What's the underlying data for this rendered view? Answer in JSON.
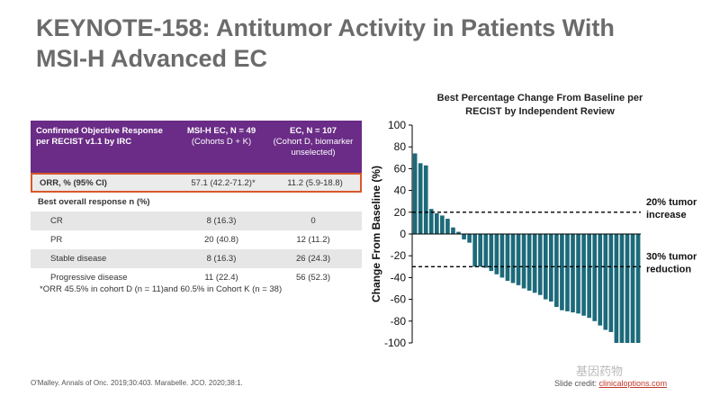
{
  "title": {
    "line1": "KEYNOTE-158: Antitumor Activity in Patients With",
    "line2": "MSI-H Advanced EC"
  },
  "table": {
    "header": {
      "col1": "Confirmed Objective Response per RECIST v1.1 by IRC",
      "col2_main": "MSI-H EC, N = 49",
      "col2_sub": "(Cohorts D + K)",
      "col3_main": "EC, N = 107",
      "col3_sub": "(Cohort D, biomarker unselected)"
    },
    "orr": {
      "label": "ORR, % (95% CI)",
      "msi": "57.1 (42.2-71.2)*",
      "ec": "11.2 (5.9-18.8)"
    },
    "bor_label": "Best overall response n (%)",
    "rows": [
      {
        "label": "CR",
        "msi": "8 (16.3)",
        "ec": "0"
      },
      {
        "label": "PR",
        "msi": "20 (40.8)",
        "ec": "12 (11.2)"
      },
      {
        "label": "Stable disease",
        "msi": "8 (16.3)",
        "ec": "26 (24.3)"
      },
      {
        "label": "Progressive disease",
        "msi": "11 (22.4)",
        "ec": "56 (52.3)"
      }
    ],
    "footnote": "*ORR 45.5% in cohort D (n = 11)and 60.5% in Cohort K (n = 38)"
  },
  "chart_data": {
    "type": "bar",
    "title_line1": "Best Percentage Change From Baseline per",
    "title_line2": "RECIST by Independent Review",
    "ylabel": "Change From Baseline (%)",
    "ylim": [
      -100,
      100
    ],
    "yticks": [
      "100",
      "80",
      "60",
      "40",
      "20",
      "0",
      "-20",
      "-40",
      "-60",
      "-80",
      "-100"
    ],
    "values": [
      74,
      65,
      63,
      23,
      19,
      17,
      14,
      6,
      2,
      -5,
      -8,
      -30,
      -30,
      -31,
      -34,
      -37,
      -40,
      -43,
      -45,
      -47,
      -50,
      -52,
      -54,
      -56,
      -60,
      -62,
      -67,
      -70,
      -71,
      -72,
      -73,
      -75,
      -77,
      -80,
      -84,
      -88,
      -90,
      -100,
      -100,
      -100,
      -100,
      -100
    ],
    "bar_color": "#1c6a7a",
    "annotations": [
      {
        "label_line1": "20% tumor",
        "label_line2": "increase",
        "y": 20
      },
      {
        "label_line1": "30% tumor",
        "label_line2": "reduction",
        "y": -30
      }
    ]
  },
  "footer": {
    "source": "O'Malley. Annals of Onc. 2019;30:403. Marabelle. JCO. 2020;38:1.",
    "credit_label": "Slide credit: ",
    "credit_link": "clinicaloptions.com",
    "watermark": "基因药物"
  }
}
